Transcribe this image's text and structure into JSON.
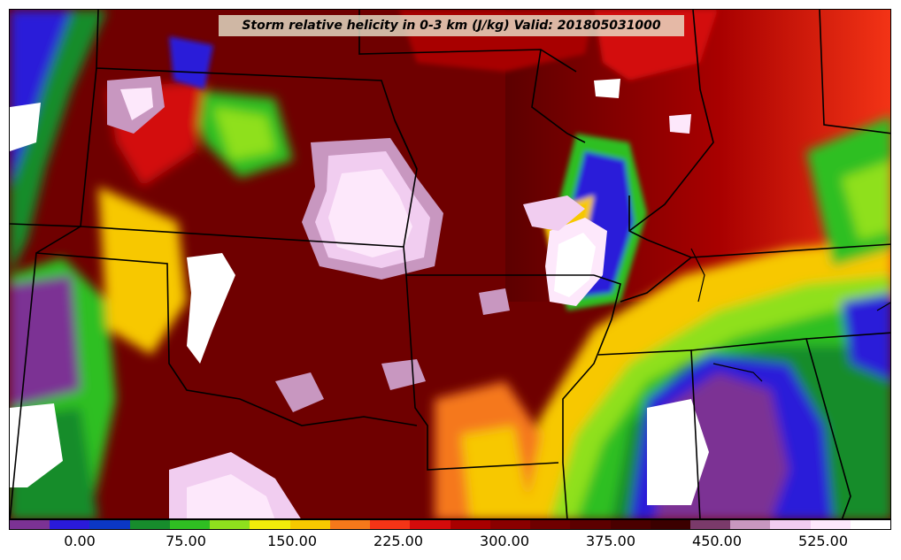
{
  "title": "Storm relative helicity in 0-3 km (J/kg) Valid: 201805031000",
  "colorbar": {
    "ticks": [
      "0.00",
      "75.00",
      "150.00",
      "225.00",
      "300.00",
      "375.00",
      "450.00",
      "525.00"
    ],
    "colors": [
      "#7b3294",
      "#2a1ad9",
      "#0b37c4",
      "#178c2c",
      "#2fbf22",
      "#8fe01d",
      "#f2ec0a",
      "#f7c800",
      "#f5781a",
      "#f43416",
      "#d30b0b",
      "#a80000",
      "#8a0000",
      "#6f0000",
      "#5c0000",
      "#4a0000",
      "#3b0000",
      "#7a3a6a",
      "#c897c0",
      "#f1cdf0",
      "#fde8fb",
      "#ffffff"
    ]
  }
}
